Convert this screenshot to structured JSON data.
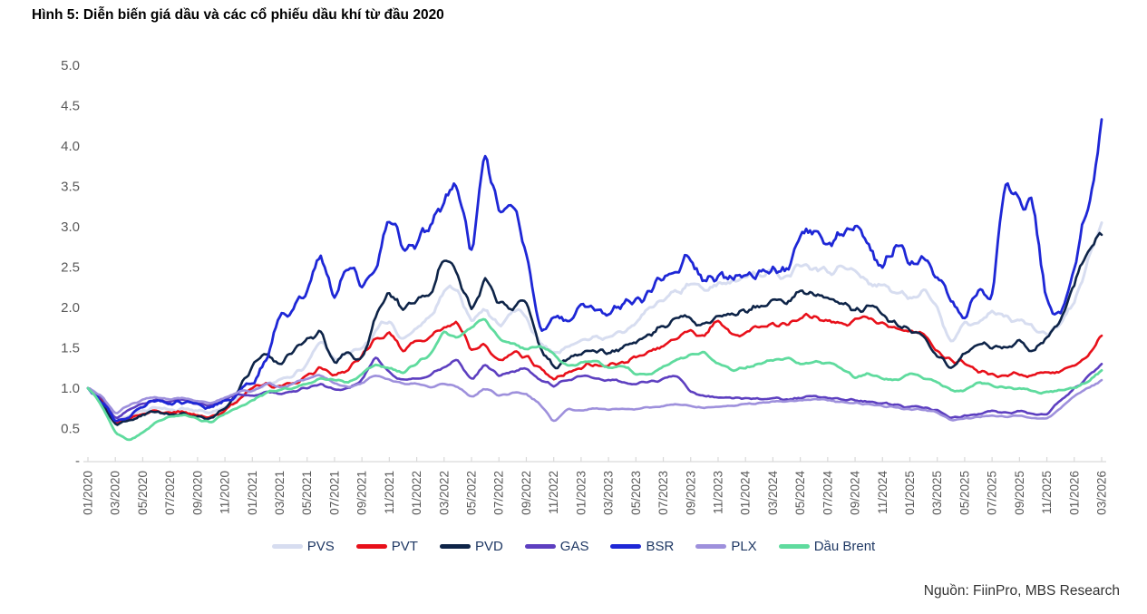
{
  "title": "Hình 5: Diễn biến giá dầu và các cổ phiếu dầu khí từ đầu 2020",
  "source": "Nguồn: FiinPro, MBS Research",
  "chart_data": {
    "type": "line",
    "title": "Hình 5: Diễn biến giá dầu và các cổ phiếu dầu khí từ đầu 2020",
    "x_axis": {
      "start": "01/2020",
      "end": "03/2026",
      "interval": "monthly",
      "tick_labels": [
        "01/2020",
        "03/2020",
        "05/2020",
        "07/2020",
        "09/2020",
        "11/2020",
        "01/2021",
        "03/2021",
        "05/2021",
        "07/2021",
        "09/2021",
        "11/2021",
        "01/2022",
        "03/2022",
        "05/2022",
        "07/2022",
        "09/2022",
        "11/2022",
        "01/2023",
        "03/2023",
        "05/2023",
        "07/2023",
        "09/2023",
        "11/2023",
        "01/2024",
        "03/2024",
        "05/2024",
        "07/2024",
        "09/2024",
        "11/2024",
        "01/2025",
        "03/2025",
        "05/2025",
        "07/2025",
        "09/2025",
        "11/2025",
        "01/2026",
        "03/2026"
      ]
    },
    "y_axis": {
      "min": 0,
      "max": 5,
      "step": 0.5,
      "tick_labels": [
        "5.0",
        "4.5",
        "4.0",
        "3.5",
        "3.0",
        "2.5",
        "2.0",
        "1.5",
        "1.0",
        "0.5",
        "-"
      ]
    },
    "grid": false,
    "legend_position": "bottom",
    "series": [
      {
        "name": "PVS",
        "color": "#d7ddf0",
        "values": [
          1.0,
          0.88,
          0.62,
          0.65,
          0.72,
          0.76,
          0.73,
          0.75,
          0.72,
          0.7,
          0.76,
          0.88,
          0.97,
          1.05,
          1.1,
          1.15,
          1.3,
          1.6,
          1.35,
          1.42,
          1.5,
          1.7,
          1.85,
          1.6,
          1.75,
          1.9,
          2.2,
          2.25,
          1.8,
          2.0,
          1.75,
          1.95,
          1.9,
          1.55,
          1.45,
          1.5,
          1.6,
          1.65,
          1.62,
          1.7,
          1.8,
          2.0,
          2.1,
          2.2,
          2.3,
          2.2,
          2.3,
          2.32,
          2.4,
          2.4,
          2.45,
          2.4,
          2.55,
          2.5,
          2.45,
          2.5,
          2.45,
          2.3,
          2.28,
          2.2,
          2.1,
          2.25,
          2.0,
          1.55,
          1.85,
          1.8,
          1.95,
          1.9,
          1.85,
          1.75,
          1.65,
          1.8,
          2.05,
          2.6,
          3.05
        ]
      },
      {
        "name": "PVT",
        "color": "#e8101a",
        "values": [
          1.0,
          0.86,
          0.58,
          0.62,
          0.68,
          0.72,
          0.69,
          0.71,
          0.66,
          0.64,
          0.72,
          0.86,
          1.0,
          1.06,
          1.02,
          1.06,
          1.16,
          1.26,
          1.15,
          1.22,
          1.4,
          1.62,
          1.7,
          1.45,
          1.58,
          1.65,
          1.75,
          1.82,
          1.45,
          1.55,
          1.35,
          1.45,
          1.4,
          1.25,
          1.1,
          1.2,
          1.25,
          1.3,
          1.28,
          1.32,
          1.38,
          1.45,
          1.52,
          1.62,
          1.72,
          1.65,
          1.85,
          1.65,
          1.7,
          1.75,
          1.8,
          1.78,
          1.85,
          1.9,
          1.85,
          1.8,
          1.85,
          1.88,
          1.8,
          1.74,
          1.7,
          1.68,
          1.45,
          1.35,
          1.3,
          1.2,
          1.18,
          1.15,
          1.17,
          1.15,
          1.2,
          1.2,
          1.28,
          1.38,
          1.65
        ]
      },
      {
        "name": "PVD",
        "color": "#0e2448",
        "values": [
          1.0,
          0.84,
          0.55,
          0.6,
          0.67,
          0.71,
          0.67,
          0.69,
          0.64,
          0.63,
          0.74,
          0.98,
          1.28,
          1.42,
          1.3,
          1.45,
          1.6,
          1.72,
          1.3,
          1.45,
          1.35,
          1.9,
          2.2,
          1.95,
          2.1,
          2.15,
          2.6,
          2.4,
          1.95,
          2.38,
          2.05,
          1.95,
          2.1,
          1.5,
          1.25,
          1.35,
          1.42,
          1.46,
          1.44,
          1.5,
          1.56,
          1.65,
          1.75,
          1.88,
          1.85,
          1.8,
          1.9,
          1.93,
          1.96,
          2.0,
          2.1,
          2.05,
          2.2,
          2.15,
          2.1,
          2.05,
          1.97,
          2.02,
          1.9,
          1.8,
          1.7,
          1.65,
          1.38,
          1.25,
          1.45,
          1.55,
          1.5,
          1.5,
          1.62,
          1.45,
          1.65,
          1.82,
          2.3,
          2.72,
          2.9
        ]
      },
      {
        "name": "GAS",
        "color": "#5d3fc0",
        "values": [
          1.0,
          0.89,
          0.62,
          0.73,
          0.81,
          0.86,
          0.83,
          0.86,
          0.81,
          0.79,
          0.86,
          0.93,
          0.9,
          0.96,
          0.93,
          0.96,
          1.0,
          1.06,
          0.98,
          1.0,
          1.1,
          1.4,
          1.2,
          1.1,
          1.12,
          1.16,
          1.26,
          1.35,
          1.1,
          1.3,
          1.15,
          1.2,
          1.25,
          1.1,
          1.02,
          1.1,
          1.15,
          1.12,
          1.1,
          1.08,
          1.05,
          1.08,
          1.12,
          1.15,
          0.95,
          0.9,
          0.88,
          0.88,
          0.88,
          0.87,
          0.88,
          0.86,
          0.88,
          0.9,
          0.88,
          0.86,
          0.85,
          0.83,
          0.81,
          0.79,
          0.77,
          0.76,
          0.73,
          0.63,
          0.66,
          0.68,
          0.72,
          0.7,
          0.72,
          0.68,
          0.67,
          0.85,
          1.0,
          1.15,
          1.3
        ]
      },
      {
        "name": "BSR",
        "color": "#1e27d6",
        "values": [
          1.0,
          0.83,
          0.58,
          0.63,
          0.76,
          0.86,
          0.81,
          0.83,
          0.79,
          0.76,
          0.83,
          0.96,
          1.05,
          1.35,
          1.9,
          2.0,
          2.2,
          2.65,
          2.1,
          2.5,
          2.25,
          2.45,
          3.1,
          2.7,
          2.75,
          3.0,
          3.3,
          3.5,
          2.6,
          4.0,
          3.15,
          3.25,
          2.7,
          1.7,
          1.9,
          1.8,
          2.05,
          1.95,
          1.9,
          2.0,
          2.1,
          2.2,
          2.35,
          2.45,
          2.6,
          2.3,
          2.4,
          2.35,
          2.4,
          2.45,
          2.5,
          2.45,
          2.9,
          2.95,
          2.8,
          2.88,
          3.0,
          2.75,
          2.45,
          2.8,
          2.55,
          2.65,
          2.35,
          2.1,
          1.85,
          2.25,
          2.05,
          3.6,
          3.35,
          3.3,
          2.05,
          1.9,
          2.5,
          3.2,
          4.33
        ]
      },
      {
        "name": "PLX",
        "color": "#9e90dc",
        "values": [
          1.0,
          0.91,
          0.68,
          0.79,
          0.86,
          0.89,
          0.86,
          0.88,
          0.84,
          0.81,
          0.88,
          0.96,
          0.96,
          1.06,
          1.01,
          1.06,
          1.11,
          1.16,
          1.06,
          1.01,
          1.06,
          1.16,
          1.11,
          1.06,
          1.06,
          1.01,
          1.06,
          1.01,
          0.89,
          1.0,
          0.9,
          0.95,
          0.93,
          0.8,
          0.58,
          0.75,
          0.72,
          0.75,
          0.73,
          0.75,
          0.74,
          0.76,
          0.78,
          0.8,
          0.78,
          0.75,
          0.77,
          0.78,
          0.8,
          0.82,
          0.84,
          0.83,
          0.85,
          0.87,
          0.85,
          0.83,
          0.82,
          0.8,
          0.78,
          0.76,
          0.74,
          0.73,
          0.7,
          0.6,
          0.63,
          0.64,
          0.66,
          0.64,
          0.66,
          0.63,
          0.62,
          0.75,
          0.9,
          1.0,
          1.1
        ]
      },
      {
        "name": "Dầu Brent",
        "color": "#5fdb9e",
        "values": [
          1.0,
          0.78,
          0.45,
          0.35,
          0.45,
          0.58,
          0.65,
          0.67,
          0.62,
          0.57,
          0.68,
          0.76,
          0.85,
          0.95,
          0.97,
          1.0,
          1.05,
          1.12,
          1.1,
          1.07,
          1.17,
          1.3,
          1.25,
          1.18,
          1.3,
          1.42,
          1.72,
          1.62,
          1.75,
          1.86,
          1.62,
          1.55,
          1.48,
          1.52,
          1.42,
          1.28,
          1.32,
          1.34,
          1.25,
          1.28,
          1.17,
          1.16,
          1.28,
          1.35,
          1.42,
          1.45,
          1.3,
          1.22,
          1.25,
          1.3,
          1.35,
          1.38,
          1.3,
          1.33,
          1.32,
          1.25,
          1.12,
          1.18,
          1.12,
          1.1,
          1.18,
          1.12,
          1.08,
          0.98,
          0.97,
          1.08,
          1.03,
          1.0,
          1.0,
          0.96,
          0.95,
          0.97,
          1.0,
          1.08,
          1.22
        ]
      }
    ]
  }
}
